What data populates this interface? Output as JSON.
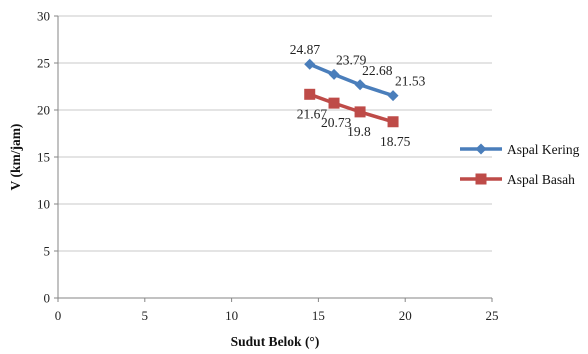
{
  "chart_data": {
    "type": "line",
    "title": "",
    "xlabel": "Sudut Belok (°)",
    "ylabel": "V (km/jam)",
    "xlim": [
      0,
      25
    ],
    "ylim": [
      0,
      30
    ],
    "x_ticks": [
      "0",
      "5",
      "10",
      "15",
      "20",
      "25"
    ],
    "y_ticks": [
      "0",
      "5",
      "10",
      "15",
      "20",
      "25",
      "30"
    ],
    "grid": "horizontal",
    "legend_position": "right",
    "series": [
      {
        "name": "Aspal Kering",
        "color": "#4a7ebb",
        "marker": "diamond",
        "x": [
          14.5,
          15.9,
          17.4,
          19.3
        ],
        "y": [
          24.87,
          23.79,
          22.68,
          21.53
        ],
        "labels": [
          "24.87",
          "23.79",
          "22.68",
          "21.53"
        ]
      },
      {
        "name": "Aspal Basah",
        "color": "#be4b48",
        "marker": "square",
        "x": [
          14.5,
          15.9,
          17.4,
          19.3
        ],
        "y": [
          21.67,
          20.73,
          19.8,
          18.75
        ],
        "labels": [
          "21.67",
          "20.73",
          "19.8",
          "18.75"
        ]
      }
    ]
  }
}
